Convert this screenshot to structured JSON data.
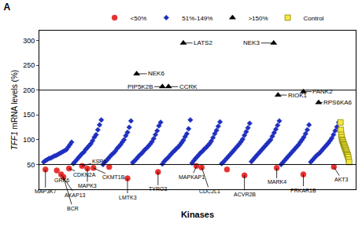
{
  "chart_data": {
    "type": "scatter",
    "title": "A",
    "x_label": "Kinases",
    "y_label": "TFF1 mRNA levels (%)",
    "xlim": [
      -10,
      715
    ],
    "xticks": [],
    "ylim": [
      0,
      320
    ],
    "yticks": [
      50,
      100,
      150,
      200,
      250,
      300
    ],
    "thresholds": [
      50,
      200
    ],
    "tick_labels": "y",
    "grid": false,
    "legend": "top",
    "series": [
      {
        "name": "<50%",
        "color": "#e8312f",
        "marker": "circle",
        "x": [
          4,
          30,
          40,
          45,
          58,
          88,
          100,
          114,
          150,
          192,
          262,
          350,
          362,
          420,
          460,
          534,
          595,
          665
        ],
        "values": [
          40,
          38,
          30,
          25,
          42,
          47,
          42,
          43,
          45,
          22,
          35,
          47,
          44,
          40,
          28,
          43,
          30,
          45
        ],
        "labels": [
          "MAP3K7",
          "GRK6",
          "AKAP13",
          "BCR",
          "CDKN2A",
          "KSR1",
          "MAPK3",
          "CKMT1B",
          null,
          "LMTK3",
          "TYRO3",
          "MAPKAP1",
          "CDC2L1",
          null,
          "ACVR2B",
          "MARK4",
          "PRKAR1B",
          "AKT3"
        ]
      },
      {
        "name": "51%-149%",
        "color": "#1f2fbf",
        "marker": "diamond",
        "x": [
          0,
          4,
          8,
          12,
          16,
          20,
          24,
          28,
          32,
          36,
          40,
          44,
          48,
          52,
          56,
          60,
          64,
          68,
          72,
          76,
          80,
          84,
          88,
          92,
          96,
          100,
          104,
          108,
          112,
          116,
          120,
          124,
          128,
          132,
          136,
          140,
          144,
          148,
          152,
          156,
          160,
          164,
          168,
          172,
          176,
          180,
          184,
          188,
          192,
          196,
          200,
          204,
          208,
          212,
          216,
          220,
          224,
          228,
          232,
          236,
          240,
          244,
          248,
          252,
          256,
          260,
          264,
          268,
          272,
          276,
          280,
          284,
          288,
          292,
          296,
          300,
          304,
          308,
          312,
          316,
          320,
          324,
          328,
          332,
          336,
          340,
          344,
          348,
          352,
          356,
          360,
          364,
          368,
          372,
          376,
          380,
          384,
          388,
          392,
          396,
          400,
          404,
          408,
          412,
          416,
          420,
          424,
          428,
          432,
          436,
          440,
          444,
          448,
          452,
          456,
          460,
          464,
          468,
          472,
          476,
          480,
          484,
          488,
          492,
          496,
          500,
          504,
          508,
          512,
          516,
          520,
          524,
          528,
          532,
          536,
          540,
          544,
          548,
          552,
          556,
          560,
          564,
          568,
          572,
          576,
          580,
          584,
          588,
          592,
          596,
          600,
          604,
          608,
          612,
          616,
          620,
          624,
          628,
          632,
          636,
          640,
          644,
          648,
          652,
          656,
          660,
          664,
          668,
          672,
          676
        ],
        "values": [
          55,
          58,
          60,
          62,
          63,
          65,
          67,
          68,
          70,
          72,
          74,
          76,
          78,
          80,
          85,
          90,
          95,
          52,
          56,
          60,
          64,
          68,
          72,
          75,
          80,
          84,
          88,
          92,
          98,
          105,
          110,
          120,
          130,
          140,
          50,
          55,
          58,
          62,
          66,
          70,
          73,
          77,
          82,
          86,
          90,
          95,
          100,
          108,
          115,
          125,
          138,
          54,
          57,
          61,
          65,
          69,
          72,
          76,
          80,
          83,
          87,
          91,
          96,
          102,
          110,
          118,
          128,
          135,
          51,
          56,
          60,
          63,
          67,
          71,
          75,
          78,
          82,
          85,
          89,
          94,
          99,
          106,
          112,
          122,
          140,
          53,
          58,
          62,
          66,
          70,
          74,
          77,
          81,
          84,
          88,
          92,
          97,
          104,
          112,
          119,
          127,
          136,
          52,
          55,
          59,
          63,
          67,
          71,
          75,
          79,
          83,
          87,
          91,
          96,
          101,
          109,
          116,
          124,
          133,
          56,
          60,
          64,
          68,
          72,
          76,
          80,
          84,
          88,
          92,
          96,
          100,
          107,
          114,
          121,
          129,
          138,
          50,
          54,
          58,
          62,
          66,
          70,
          74,
          78,
          82,
          86,
          90,
          95,
          100,
          105,
          112,
          120,
          130,
          55,
          59,
          63,
          67,
          70,
          73,
          77,
          81,
          85,
          89,
          93,
          98,
          103,
          110,
          118,
          126,
          135
        ]
      },
      {
        "name": ">150%",
        "color": "#000000",
        "marker": "triangle-up",
        "x": [
          213,
          272,
          286,
          320,
          527,
          537,
          595,
          630
        ],
        "values": [
          233,
          207,
          207,
          295,
          295,
          190,
          197,
          175
        ],
        "labels": [
          "NEK6",
          "PIP5K2B",
          "CCRK",
          "LATS2",
          "NEK3",
          "RIOK1",
          "PANK2",
          "RPS6KA6"
        ]
      },
      {
        "name": "Control",
        "color": "#f5e642",
        "marker": "square",
        "x": [
          680,
          681,
          682,
          683,
          684,
          685,
          686,
          687,
          688,
          689,
          690,
          691,
          692,
          693,
          694,
          695,
          696,
          697,
          698,
          699,
          700
        ],
        "values": [
          135,
          120,
          110,
          105,
          100,
          98,
          95,
          92,
          90,
          88,
          85,
          83,
          80,
          78,
          75,
          72,
          70,
          68,
          65,
          60,
          55
        ]
      }
    ]
  }
}
